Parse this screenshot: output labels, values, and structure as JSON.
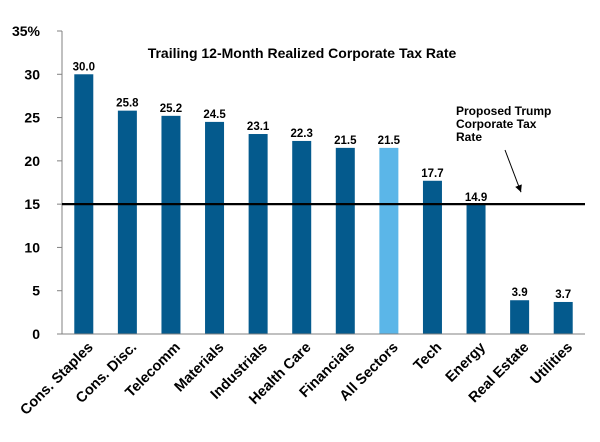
{
  "chart_data": {
    "type": "bar",
    "title": "Trailing 12-Month Realized Corporate Tax Rate",
    "categories": [
      "Cons. Staples",
      "Cons. Disc.",
      "Telecomm",
      "Materials",
      "Industrials",
      "Health Care",
      "Financials",
      "All Sectors",
      "Tech",
      "Energy",
      "Real Estate",
      "Utilities"
    ],
    "values": [
      30.0,
      25.8,
      25.2,
      24.5,
      23.1,
      22.3,
      21.5,
      21.5,
      17.7,
      14.9,
      3.9,
      3.7
    ],
    "value_labels": [
      "30.0",
      "25.8",
      "25.2",
      "24.5",
      "23.1",
      "22.3",
      "21.5",
      "21.5",
      "17.7",
      "14.9",
      "3.9",
      "3.7"
    ],
    "highlight_category": "All Sectors",
    "y_ticks": [
      0,
      5,
      10,
      15,
      20,
      25,
      30,
      35
    ],
    "y_tick_labels": [
      "0",
      "5",
      "10",
      "15",
      "20",
      "25",
      "30",
      "35%"
    ],
    "ylim": [
      0,
      35
    ],
    "reference_line": {
      "value": 15,
      "label_lines": [
        "Proposed Trump",
        "Corporate Tax",
        "Rate"
      ]
    },
    "colors": {
      "bar": "#045a8d",
      "highlight": "#5bb6e8",
      "axis": "#808080",
      "reference_line": "#000000"
    },
    "grid": false,
    "legend": "none"
  }
}
